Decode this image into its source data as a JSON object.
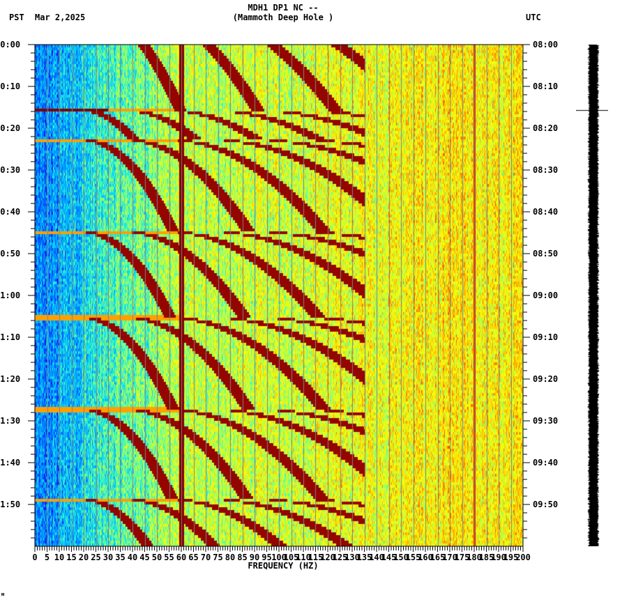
{
  "header": {
    "station_line": "MDH1 DP1 NC --",
    "site_name": "(Mammoth Deep Hole )",
    "left_timezone": "PST",
    "date": "Mar 2,2025",
    "right_timezone": "UTC"
  },
  "footer": {
    "mark": "ᴍ"
  },
  "colors": {
    "background": "#ffffff",
    "axis": "#000000",
    "gridline": "#808080",
    "colormap": [
      "#0000ff",
      "#0080ff",
      "#00c8ff",
      "#40ffc0",
      "#c0ff40",
      "#ffff00",
      "#ffa000",
      "#ff2000",
      "#800000"
    ],
    "trace": "#000000"
  },
  "chart_data": {
    "type": "heatmap",
    "subtype": "spectrogram",
    "title": "MDH1 DP1 NC -- (Mammoth Deep Hole )",
    "xlabel": "FREQUENCY (HZ)",
    "ylabel_left": "PST",
    "ylabel_right": "UTC",
    "xlim": [
      0,
      200
    ],
    "x_ticks": [
      0,
      5,
      10,
      15,
      20,
      25,
      30,
      35,
      40,
      45,
      50,
      55,
      60,
      65,
      70,
      75,
      80,
      85,
      90,
      95,
      100,
      105,
      110,
      115,
      120,
      125,
      130,
      135,
      140,
      145,
      150,
      155,
      160,
      165,
      170,
      175,
      180,
      185,
      190,
      195,
      200
    ],
    "x_minor_tick_step": 1,
    "x_gridline_step": 5,
    "y_ticks_left": [
      "00:00",
      "00:10",
      "00:20",
      "00:30",
      "00:40",
      "00:50",
      "01:00",
      "01:10",
      "01:20",
      "01:30",
      "01:40",
      "01:50"
    ],
    "y_ticks_right": [
      "08:00",
      "08:10",
      "08:20",
      "08:30",
      "08:40",
      "08:50",
      "09:00",
      "09:10",
      "09:20",
      "09:30",
      "09:40",
      "09:50"
    ],
    "y_minor_tick_step_min": 2,
    "y_range_minutes": [
      0,
      120
    ],
    "features": {
      "persistent_line_hz": 60,
      "secondary_line_hz": 180,
      "low_freq_level": "blue (low power)",
      "high_freq_level": "yellow-green (medium power)",
      "sweep_cycle_restarts_min": [
        15.5,
        22.5,
        44.5,
        65,
        87,
        108.5
      ],
      "sweep_description": "repeating dispersive harmonic arcs rising in frequency over time, strongest between 20 and 130 Hz"
    },
    "trace_panel": {
      "description": "seismogram amplitude trace (black) alongside spectrogram",
      "spike_minute": 16
    }
  }
}
